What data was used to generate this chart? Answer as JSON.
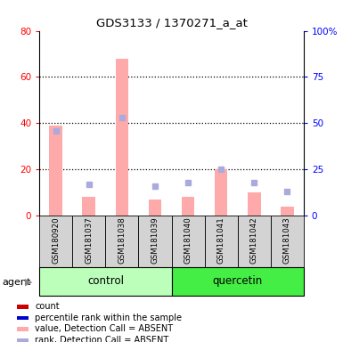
{
  "title": "GDS3133 / 1370271_a_at",
  "samples": [
    "GSM180920",
    "GSM181037",
    "GSM181038",
    "GSM181039",
    "GSM181040",
    "GSM181041",
    "GSM181042",
    "GSM181043"
  ],
  "bar_values": [
    39,
    8,
    68,
    7,
    8,
    20,
    10,
    4
  ],
  "rank_values": [
    46,
    17,
    53,
    16,
    18,
    25,
    18,
    13
  ],
  "ylim_left": [
    0,
    80
  ],
  "ylim_right": [
    0,
    100
  ],
  "yticks_left": [
    0,
    20,
    40,
    60,
    80
  ],
  "yticks_right": [
    0,
    25,
    50,
    75,
    100
  ],
  "bar_color": "#ffaaaa",
  "rank_color": "#aaaadd",
  "control_color": "#bbffbb",
  "quercetin_color": "#44ee44",
  "gray_box_color": "#d3d3d3",
  "legend_items": [
    {
      "label": "count",
      "color": "#cc0000"
    },
    {
      "label": "percentile rank within the sample",
      "color": "#0000cc"
    },
    {
      "label": "value, Detection Call = ABSENT",
      "color": "#ffaaaa"
    },
    {
      "label": "rank, Detection Call = ABSENT",
      "color": "#aaaadd"
    }
  ]
}
